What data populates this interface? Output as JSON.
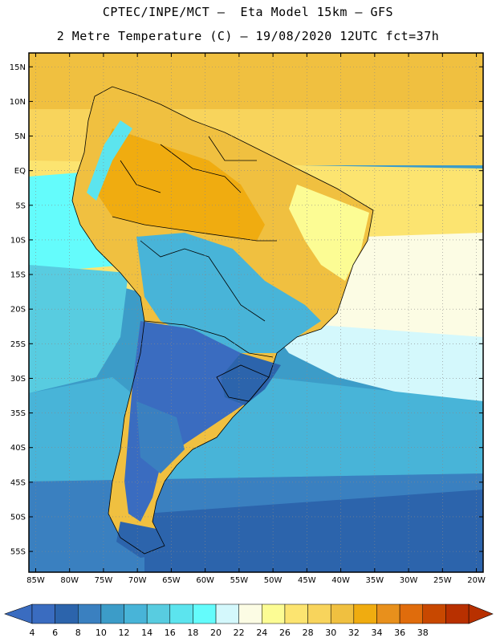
{
  "header": {
    "line1": "CPTEC/INPE/MCT –  Eta Model 15km – GFS",
    "line2": "2 Metre Temperature (C) – 19/08/2020 12UTC fct=37h"
  },
  "map": {
    "lon_range": [
      -86,
      -19
    ],
    "lat_range": [
      -58,
      17
    ],
    "lat_ticks": [
      {
        "value": 15,
        "label": "15N"
      },
      {
        "value": 10,
        "label": "10N"
      },
      {
        "value": 5,
        "label": "5N"
      },
      {
        "value": 0,
        "label": "EQ"
      },
      {
        "value": -5,
        "label": "5S"
      },
      {
        "value": -10,
        "label": "10S"
      },
      {
        "value": -15,
        "label": "15S"
      },
      {
        "value": -20,
        "label": "20S"
      },
      {
        "value": -25,
        "label": "25S"
      },
      {
        "value": -30,
        "label": "30S"
      },
      {
        "value": -35,
        "label": "35S"
      },
      {
        "value": -40,
        "label": "40S"
      },
      {
        "value": -45,
        "label": "45S"
      },
      {
        "value": -50,
        "label": "50S"
      },
      {
        "value": -55,
        "label": "55S"
      }
    ],
    "lon_ticks": [
      {
        "value": -85,
        "label": "85W"
      },
      {
        "value": -80,
        "label": "80W"
      },
      {
        "value": -75,
        "label": "75W"
      },
      {
        "value": -70,
        "label": "70W"
      },
      {
        "value": -65,
        "label": "65W"
      },
      {
        "value": -60,
        "label": "60W"
      },
      {
        "value": -55,
        "label": "55W"
      },
      {
        "value": -50,
        "label": "50W"
      },
      {
        "value": -45,
        "label": "45W"
      },
      {
        "value": -40,
        "label": "40W"
      },
      {
        "value": -35,
        "label": "35W"
      },
      {
        "value": -30,
        "label": "30W"
      },
      {
        "value": -25,
        "label": "25W"
      },
      {
        "value": -20,
        "label": "20W"
      }
    ],
    "grid": true
  },
  "colorbar": {
    "labels": [
      "4",
      "6",
      "8",
      "10",
      "12",
      "14",
      "16",
      "18",
      "20",
      "22",
      "24",
      "26",
      "28",
      "30",
      "32",
      "34",
      "36",
      "38"
    ],
    "colors": [
      "#3a6cc0",
      "#2c64ac",
      "#3a80c0",
      "#3c9cc8",
      "#48b4d8",
      "#58cce0",
      "#5ce4ee",
      "#64fcfc",
      "#d4f8fc",
      "#fcfce4",
      "#fcfc94",
      "#fce470",
      "#f8d45c",
      "#f0c040",
      "#f0ac10",
      "#e8901c",
      "#e06c0c",
      "#c84800",
      "#b83000"
    ],
    "low_color": "#3a6cc0",
    "high_color": "#b83000"
  }
}
